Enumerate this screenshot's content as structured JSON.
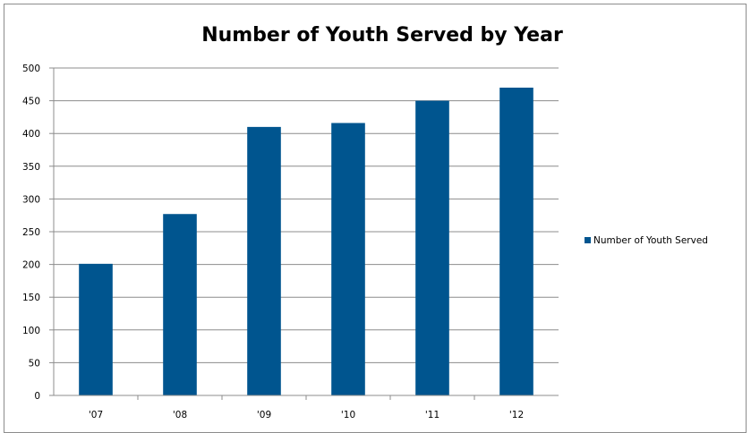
{
  "chart_data": {
    "type": "bar",
    "title": "Number of Youth Served by Year",
    "xlabel": "",
    "ylabel": "",
    "categories": [
      "'07",
      "'08",
      "'09",
      "'10",
      "'11",
      "'12"
    ],
    "series": [
      {
        "name": "Number of Youth Served",
        "values": [
          201,
          277,
          410,
          416,
          450,
          470
        ]
      }
    ],
    "ylim": [
      0,
      500
    ],
    "yticks": [
      0,
      50,
      100,
      150,
      200,
      250,
      300,
      350,
      400,
      450,
      500
    ],
    "grid": true,
    "legend_position": "right",
    "colors": {
      "bar": "#00558f",
      "grid": "#8c8c8c",
      "axis": "#8c8c8c"
    }
  }
}
